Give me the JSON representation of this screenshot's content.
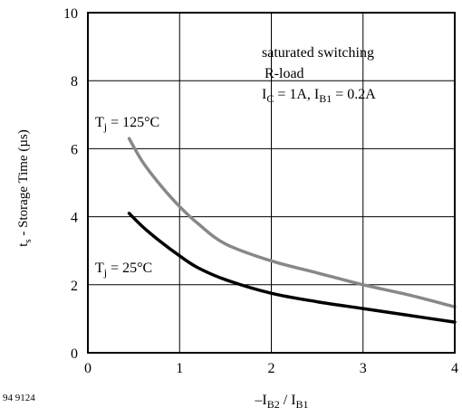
{
  "chart_data": {
    "type": "line",
    "figure_id": "94 9124",
    "ylabel": {
      "base": "t",
      "sub": "s",
      "rest": " - Storage Time (µs)"
    },
    "xlabel": {
      "parts": [
        {
          "t": "–I",
          "sub": false
        },
        {
          "t": "B2",
          "sub": true
        },
        {
          "t": " / I",
          "sub": false
        },
        {
          "t": "B1",
          "sub": true
        }
      ]
    },
    "xlim": [
      0,
      4
    ],
    "ylim": [
      0,
      10
    ],
    "x_ticks": [
      "0",
      "1",
      "2",
      "3",
      "4"
    ],
    "y_ticks": [
      "0",
      "2",
      "4",
      "6",
      "8",
      "10"
    ],
    "grid": true,
    "annotation": {
      "line1": "saturated switching",
      "line2": "R-load",
      "line3": {
        "parts": [
          {
            "t": "I",
            "sub": false
          },
          {
            "t": "C",
            "sub": true
          },
          {
            "t": " = 1A, I",
            "sub": false
          },
          {
            "t": "B1",
            "sub": true
          },
          {
            "t": " = 0.2A",
            "sub": false
          }
        ]
      }
    },
    "series": [
      {
        "name": {
          "parts": [
            {
              "t": "T",
              "sub": false
            },
            {
              "t": "j",
              "sub": true
            },
            {
              "t": " = 125°C",
              "sub": false
            }
          ]
        },
        "color": "#888888",
        "x": [
          0.45,
          0.6,
          0.8,
          1.0,
          1.2,
          1.5,
          2.0,
          2.5,
          3.0,
          3.5,
          4.0
        ],
        "y": [
          6.3,
          5.6,
          4.9,
          4.3,
          3.8,
          3.2,
          2.7,
          2.35,
          2.0,
          1.7,
          1.35
        ]
      },
      {
        "name": {
          "parts": [
            {
              "t": "T",
              "sub": false
            },
            {
              "t": "j",
              "sub": true
            },
            {
              "t": " = 25°C",
              "sub": false
            }
          ]
        },
        "color": "#000000",
        "x": [
          0.45,
          0.6,
          0.8,
          1.0,
          1.2,
          1.5,
          2.0,
          2.5,
          3.0,
          3.5,
          4.0
        ],
        "y": [
          4.1,
          3.7,
          3.25,
          2.85,
          2.5,
          2.15,
          1.75,
          1.5,
          1.3,
          1.1,
          0.9
        ]
      }
    ]
  }
}
